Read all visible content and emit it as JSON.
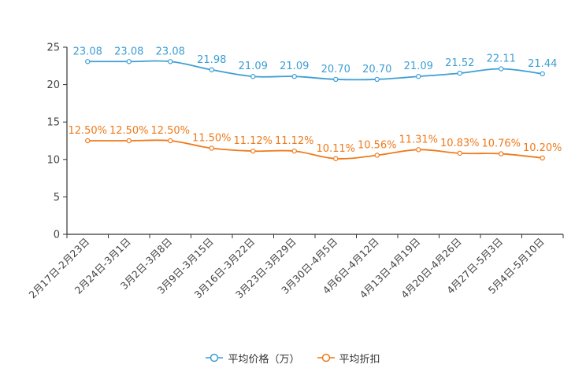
{
  "chart_data": {
    "type": "line",
    "title": "",
    "xlabel": "",
    "ylabel": "",
    "ylim": [
      0,
      25
    ],
    "yticks": [
      "0",
      "5",
      "10",
      "15",
      "20",
      "25"
    ],
    "categories": [
      "2月17日-2月23日",
      "2月24日-3月1日",
      "3月2日-3月8日",
      "3月9日-3月15日",
      "3月16日-3月22日",
      "3月23日-3月29日",
      "3月30日-4月5日",
      "4月6日-4月12日",
      "4月13日-4月19日",
      "4月20日-4月26日",
      "4月27日-5月3日",
      "5月4日-5月10日"
    ],
    "series": [
      {
        "name": "平均价格（万）",
        "color": "#3d9fd4",
        "values": [
          23.08,
          23.08,
          23.08,
          21.98,
          21.09,
          21.09,
          20.7,
          20.7,
          21.09,
          21.52,
          22.11,
          21.44
        ],
        "labels": [
          "23.08",
          "23.08",
          "23.08",
          "21.98",
          "21.09",
          "21.09",
          "20.70",
          "20.70",
          "21.09",
          "21.52",
          "22.11",
          "21.44"
        ]
      },
      {
        "name": "平均折扣",
        "color": "#f07a1a",
        "values": [
          12.5,
          12.5,
          12.5,
          11.5,
          11.12,
          11.12,
          10.11,
          10.56,
          11.31,
          10.83,
          10.76,
          10.2
        ],
        "labels": [
          "12.50%",
          "12.50%",
          "12.50%",
          "11.50%",
          "11.12%",
          "11.12%",
          "10.11%",
          "10.56%",
          "11.31%",
          "10.83%",
          "10.76%",
          "10.20%"
        ]
      }
    ],
    "legend": "bottom-center"
  }
}
